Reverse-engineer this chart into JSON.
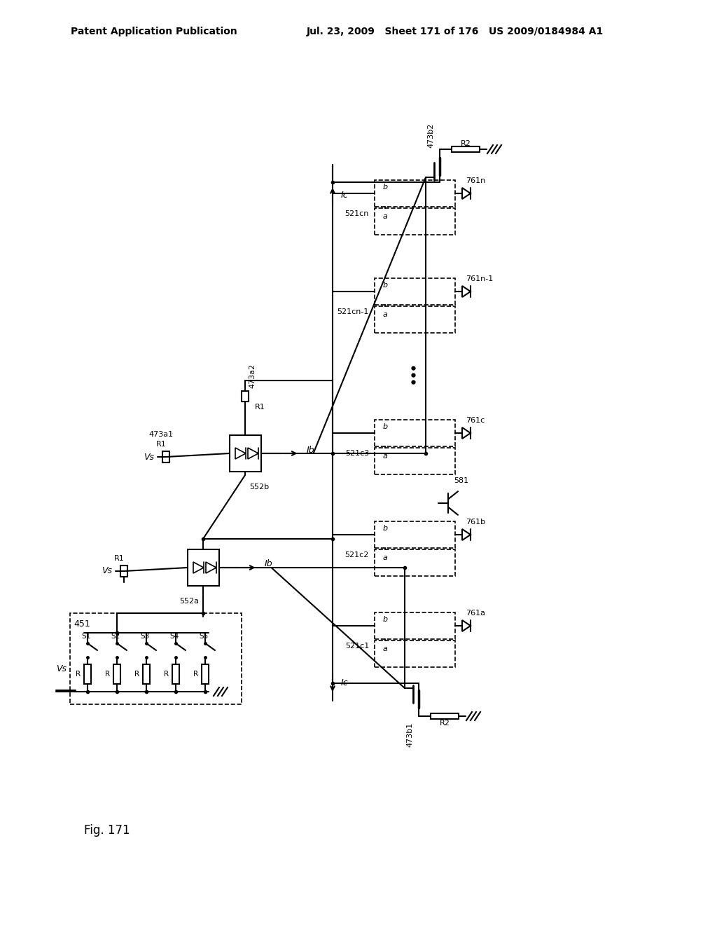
{
  "header_left": "Patent Application Publication",
  "header_right": "Jul. 23, 2009   Sheet 171 of 176   US 2009/0184984 A1",
  "figure_label": "Fig. 171",
  "background": "#ffffff",
  "line_color": "#000000",
  "text_color": "#000000"
}
